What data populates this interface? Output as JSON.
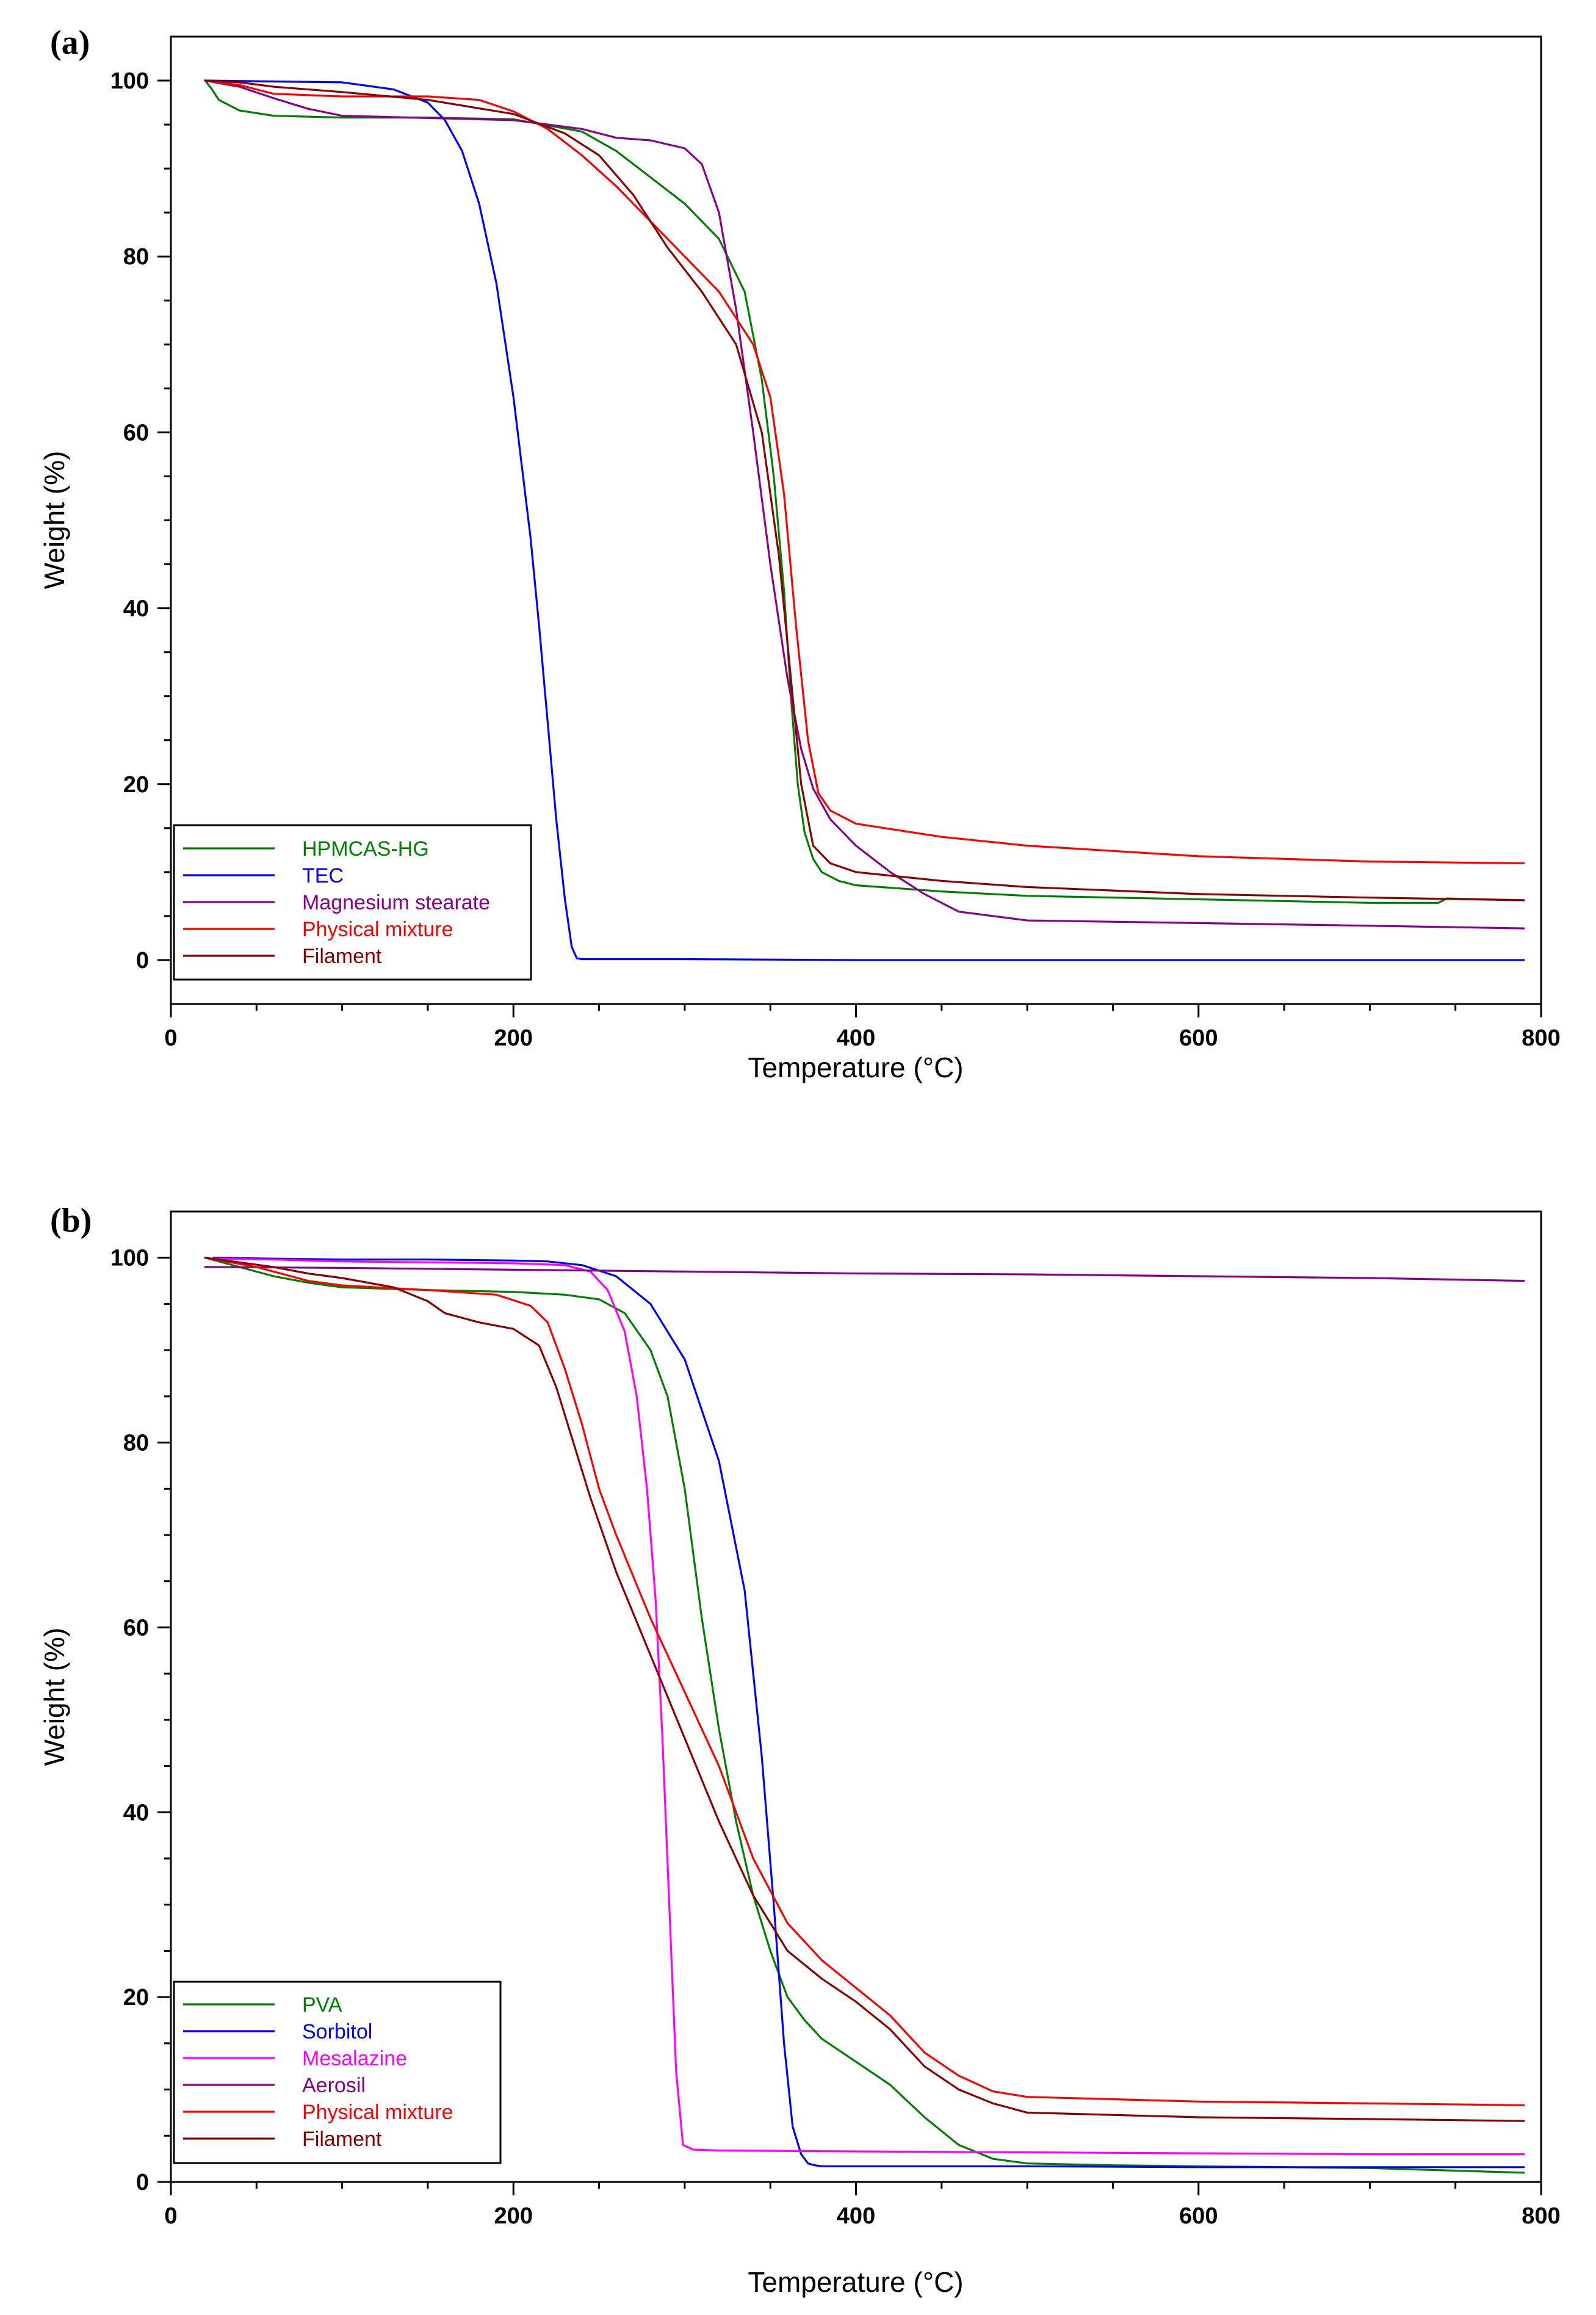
{
  "chart_data": [
    {
      "panel_label": "(a)",
      "type": "line",
      "xlabel": "Temperature (°C)",
      "ylabel": "Weight (%)",
      "xlim": [
        0,
        800
      ],
      "ylim": [
        -5,
        105
      ],
      "xticks": [
        0,
        200,
        400,
        600,
        800
      ],
      "yticks": [
        0,
        20,
        40,
        60,
        80,
        100
      ],
      "legend_position": "bottom-left",
      "series": [
        {
          "name": "HPMCAS-HG",
          "color": "#008000",
          "x": [
            20,
            24,
            28,
            40,
            60,
            100,
            150,
            200,
            240,
            260,
            280,
            300,
            320,
            335,
            345,
            352,
            358,
            362,
            366,
            370,
            375,
            380,
            390,
            400,
            450,
            500,
            600,
            700,
            740,
            745,
            790
          ],
          "y": [
            100,
            99,
            97.8,
            96.6,
            96.0,
            95.8,
            95.8,
            95.6,
            94.2,
            92,
            89,
            86,
            82,
            76,
            66,
            55,
            42,
            30,
            20,
            14.5,
            11.5,
            10,
            9,
            8.5,
            7.8,
            7.3,
            6.9,
            6.5,
            6.5,
            7,
            6.8
          ]
        },
        {
          "name": "TEC",
          "color": "#0000ff",
          "x": [
            20,
            60,
            100,
            130,
            150,
            160,
            170,
            180,
            190,
            200,
            210,
            215,
            220,
            225,
            230,
            234,
            237,
            240,
            260,
            300,
            400,
            500,
            600,
            700,
            790
          ],
          "y": [
            100,
            99.9,
            99.8,
            99.0,
            97.5,
            95.5,
            92,
            86,
            77,
            64,
            48,
            38,
            27,
            16,
            7,
            1.5,
            0.2,
            0.1,
            0.1,
            0.1,
            0,
            0,
            0,
            0,
            0
          ]
        },
        {
          "name": "Magnesium stearate",
          "color": "#8b008b",
          "x": [
            20,
            40,
            60,
            80,
            100,
            140,
            200,
            240,
            260,
            280,
            300,
            310,
            320,
            330,
            340,
            350,
            360,
            368,
            375,
            385,
            400,
            420,
            440,
            460,
            500,
            600,
            700,
            790
          ],
          "y": [
            100,
            99.3,
            98,
            96.8,
            96.0,
            95.8,
            95.5,
            94.5,
            93.5,
            93.2,
            92.3,
            90.5,
            85,
            74,
            60,
            45,
            32,
            24,
            19.5,
            16,
            13,
            10,
            7.5,
            5.5,
            4.5,
            4.2,
            3.9,
            3.6
          ]
        },
        {
          "name": "Physical mixture",
          "color": "#ff0000",
          "x": [
            20,
            40,
            60,
            100,
            150,
            180,
            200,
            220,
            240,
            260,
            280,
            300,
            320,
            340,
            350,
            358,
            365,
            372,
            378,
            385,
            400,
            450,
            500,
            600,
            700,
            790
          ],
          "y": [
            100,
            99.5,
            98.5,
            98.2,
            98.2,
            97.8,
            96.5,
            94.5,
            91.5,
            88,
            84,
            80,
            76,
            70,
            64,
            53,
            38,
            25,
            19,
            17,
            15.5,
            14,
            13,
            11.8,
            11.2,
            11
          ]
        },
        {
          "name": "Filament",
          "color": "#8b0000",
          "x": [
            20,
            40,
            60,
            100,
            150,
            200,
            230,
            250,
            270,
            290,
            310,
            330,
            345,
            355,
            362,
            368,
            375,
            385,
            400,
            450,
            500,
            600,
            700,
            790
          ],
          "y": [
            100,
            99.8,
            99.3,
            98.7,
            97.8,
            96.2,
            94,
            91.5,
            87,
            81,
            76,
            70,
            60,
            46,
            32,
            20,
            13,
            11,
            10,
            9,
            8.3,
            7.5,
            7.1,
            6.8
          ]
        }
      ]
    },
    {
      "panel_label": "(b)",
      "type": "line",
      "xlabel": "Temperature (°C)",
      "ylabel": "Weight (%)",
      "xlim": [
        0,
        800
      ],
      "ylim": [
        0,
        105
      ],
      "xticks": [
        0,
        200,
        400,
        600,
        800
      ],
      "yticks": [
        0,
        20,
        40,
        60,
        80,
        100
      ],
      "legend_position": "bottom-left",
      "series": [
        {
          "name": "PVA",
          "color": "#008000",
          "x": [
            20,
            40,
            60,
            80,
            100,
            150,
            200,
            230,
            250,
            265,
            280,
            290,
            300,
            310,
            320,
            330,
            340,
            350,
            360,
            370,
            380,
            400,
            420,
            440,
            460,
            480,
            500,
            550,
            600,
            700,
            790
          ],
          "y": [
            100,
            99,
            98,
            97.3,
            96.8,
            96.5,
            96.3,
            96.0,
            95.5,
            94,
            90,
            85,
            75,
            61,
            49,
            39,
            31,
            25,
            20,
            17.5,
            15.5,
            13,
            10.5,
            7,
            4,
            2.5,
            2,
            1.8,
            1.7,
            1.5,
            1
          ]
        },
        {
          "name": "Sorbitol",
          "color": "#0000ff",
          "x": [
            25,
            60,
            100,
            150,
            200,
            220,
            240,
            260,
            280,
            300,
            320,
            335,
            345,
            352,
            358,
            363,
            368,
            372,
            376,
            380,
            400,
            500,
            600,
            700,
            790
          ],
          "y": [
            100,
            99.9,
            99.8,
            99.8,
            99.7,
            99.6,
            99.2,
            98,
            95,
            89,
            78,
            64,
            46,
            30,
            15,
            6,
            3,
            2,
            1.8,
            1.7,
            1.7,
            1.7,
            1.6,
            1.6,
            1.6
          ]
        },
        {
          "name": "Mesalazine",
          "color": "#ff00ff",
          "x": [
            25,
            60,
            100,
            150,
            200,
            230,
            245,
            255,
            265,
            272,
            278,
            283,
            287,
            291,
            295,
            299,
            305,
            320,
            400,
            500,
            600,
            700,
            790
          ],
          "y": [
            99.9,
            99.8,
            99.6,
            99.5,
            99.4,
            99.2,
            98.5,
            96.5,
            92,
            85,
            75,
            63,
            48,
            30,
            12,
            4,
            3.5,
            3.4,
            3.3,
            3.2,
            3.1,
            3,
            3
          ]
        },
        {
          "name": "Aerosil",
          "color": "#8b008b",
          "x": [
            20,
            100,
            200,
            300,
            400,
            500,
            600,
            700,
            790
          ],
          "y": [
            99,
            98.9,
            98.7,
            98.5,
            98.3,
            98.2,
            98,
            97.8,
            97.5
          ]
        },
        {
          "name": "Physical mixture",
          "color": "#ff0000",
          "x": [
            20,
            50,
            80,
            100,
            150,
            190,
            210,
            220,
            230,
            240,
            250,
            260,
            280,
            300,
            320,
            340,
            360,
            380,
            400,
            420,
            440,
            460,
            480,
            500,
            600,
            700,
            790
          ],
          "y": [
            100,
            99,
            97.5,
            97,
            96.5,
            96,
            94.8,
            93,
            88,
            82,
            75,
            70,
            61,
            53,
            45,
            35,
            28,
            24,
            21,
            18,
            14,
            11.5,
            9.8,
            9.2,
            8.7,
            8.5,
            8.3
          ]
        },
        {
          "name": "Filament",
          "color": "#8b0000",
          "x": [
            20,
            40,
            60,
            80,
            100,
            130,
            150,
            160,
            180,
            200,
            215,
            225,
            235,
            245,
            260,
            280,
            300,
            320,
            340,
            360,
            380,
            400,
            420,
            440,
            460,
            480,
            500,
            600,
            700,
            790
          ],
          "y": [
            100,
            99.5,
            99,
            98.3,
            97.8,
            96.8,
            95.3,
            94,
            93,
            92.3,
            90.5,
            86,
            80,
            74,
            66,
            57,
            48,
            39,
            31,
            25,
            22,
            19.5,
            16.5,
            12.5,
            10,
            8.5,
            7.5,
            7,
            6.8,
            6.6
          ]
        }
      ]
    }
  ]
}
